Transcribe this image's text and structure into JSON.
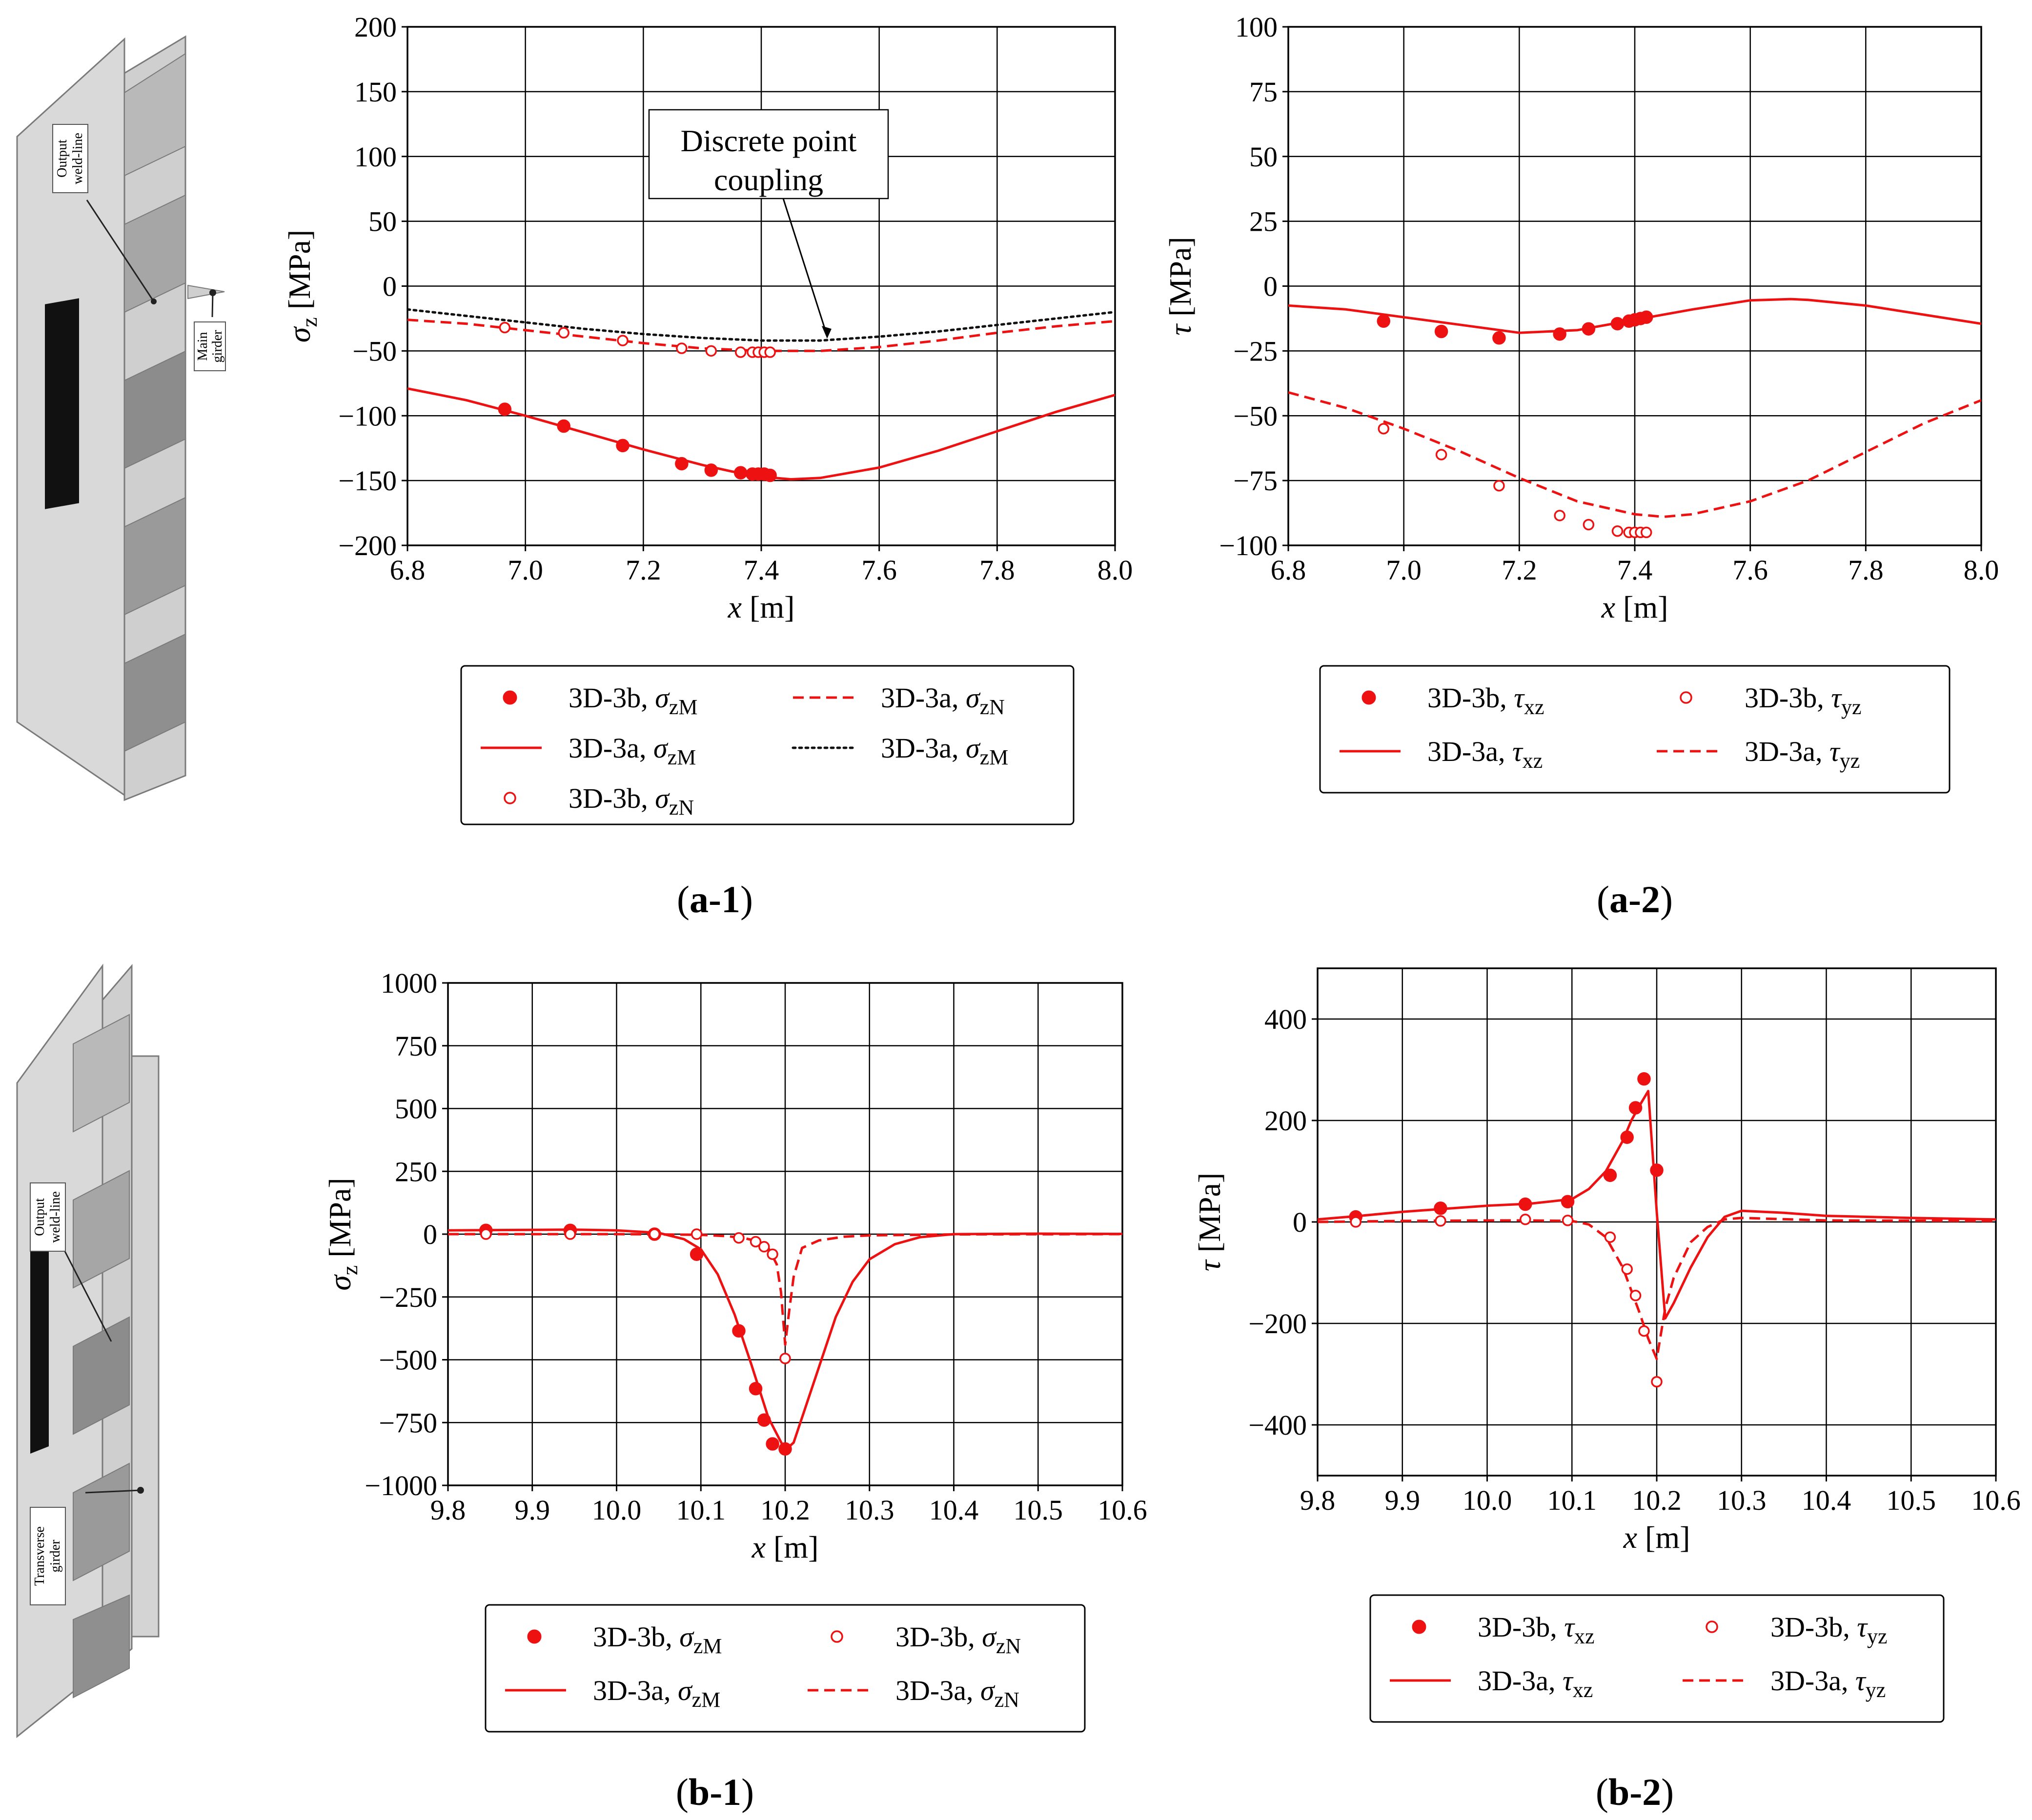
{
  "colors": {
    "series": "#ee1111",
    "dotted": "#111111",
    "grid": "#000000",
    "model_face": "#d9d9d9",
    "model_dark": "#8c8c8c"
  },
  "model_a": {
    "labels": [
      "Output",
      "weld-line",
      "Main",
      "girder"
    ]
  },
  "model_b": {
    "labels": [
      "Output",
      "weld-line",
      "Transverse",
      "girder"
    ]
  },
  "captions": {
    "a1": {
      "open": "(",
      "bold": "a-1",
      "close": ")"
    },
    "a2": {
      "open": "(",
      "bold": "a-2",
      "close": ")"
    },
    "b1": {
      "open": "(",
      "bold": "b-1",
      "close": ")"
    },
    "b2": {
      "open": "(",
      "bold": "b-2",
      "close": ")"
    }
  },
  "chart_data": [
    {
      "id": "a1",
      "type": "line",
      "xlabel": {
        "sym": "x",
        "unit": " [m]"
      },
      "ylabel": {
        "sym": "σ",
        "sub": "z",
        "unit": " [MPa]"
      },
      "xlim": [
        6.8,
        8.0
      ],
      "ylim": [
        -200,
        200
      ],
      "xticks": [
        "6.8",
        "7.0",
        "7.2",
        "7.4",
        "7.6",
        "7.8",
        "8.0"
      ],
      "yticks": [
        "−200",
        "−150",
        "−100",
        "−50",
        "0",
        "50",
        "100",
        "150",
        "200"
      ],
      "grid": true,
      "annotation": {
        "line1": "Discrete point",
        "line2": "coupling",
        "arrow_to": [
          7.51,
          -42
        ]
      },
      "series": [
        {
          "name": "3D-3a, σzM (solid)",
          "style": "solid",
          "x": [
            6.8,
            6.9,
            7.0,
            7.1,
            7.2,
            7.3,
            7.35,
            7.4,
            7.45,
            7.5,
            7.6,
            7.7,
            7.8,
            7.9,
            8.0
          ],
          "y": [
            -79,
            -88,
            -100,
            -113,
            -126,
            -138,
            -143,
            -147,
            -149,
            -148,
            -140,
            -127,
            -112,
            -97,
            -84
          ]
        },
        {
          "name": "3D-3a, σzN (dashed)",
          "style": "dashed",
          "x": [
            6.8,
            6.9,
            7.0,
            7.1,
            7.2,
            7.3,
            7.4,
            7.5,
            7.6,
            7.7,
            7.8,
            7.9,
            8.0
          ],
          "y": [
            -26,
            -29,
            -34,
            -39,
            -44,
            -48,
            -50,
            -50,
            -47,
            -42,
            -36,
            -31,
            -27
          ]
        },
        {
          "name": "3D-3a, σzM (dotted)",
          "style": "dotted",
          "x": [
            6.8,
            6.9,
            7.0,
            7.1,
            7.2,
            7.3,
            7.4,
            7.5,
            7.6,
            7.7,
            7.8,
            7.9,
            8.0
          ],
          "y": [
            -18,
            -23,
            -28,
            -33,
            -37,
            -40,
            -42,
            -42,
            -39,
            -35,
            -30,
            -25,
            -20
          ]
        },
        {
          "name": "3D-3b, σzM",
          "style": "filled",
          "x": [
            6.965,
            7.065,
            7.165,
            7.265,
            7.315,
            7.365,
            7.385,
            7.395,
            7.405,
            7.415
          ],
          "y": [
            -95,
            -108,
            -123,
            -137,
            -142,
            -144,
            -145,
            -145,
            -145,
            -146
          ]
        },
        {
          "name": "3D-3b, σzN",
          "style": "open",
          "x": [
            6.965,
            7.065,
            7.165,
            7.265,
            7.315,
            7.365,
            7.385,
            7.395,
            7.405,
            7.415
          ],
          "y": [
            -32,
            -36,
            -42,
            -48,
            -50,
            -51,
            -51,
            -51,
            -51,
            -51
          ]
        }
      ],
      "legend": [
        {
          "mark": "filled",
          "label": "3D-3b, ",
          "sym": "σ",
          "sub": "zM"
        },
        {
          "mark": "dashed",
          "label": "3D-3a, ",
          "sym": "σ",
          "sub": "zN"
        },
        {
          "mark": "solid",
          "label": "3D-3a, ",
          "sym": "σ",
          "sub": "zM"
        },
        {
          "mark": "dotted",
          "label": "3D-3a, ",
          "sym": "σ",
          "sub": "zM"
        },
        {
          "mark": "open",
          "label": "3D-3b, ",
          "sym": "σ",
          "sub": "zN"
        }
      ]
    },
    {
      "id": "a2",
      "type": "line",
      "xlabel": {
        "sym": "x",
        "unit": " [m]"
      },
      "ylabel": {
        "sym": "τ",
        "sub": "",
        "unit": " [MPa]"
      },
      "xlim": [
        6.8,
        8.0
      ],
      "ylim": [
        -100,
        100
      ],
      "xticks": [
        "6.8",
        "7.0",
        "7.2",
        "7.4",
        "7.6",
        "7.8",
        "8.0"
      ],
      "yticks": [
        "−100",
        "−75",
        "−50",
        "−25",
        "0",
        "25",
        "50",
        "75",
        "100"
      ],
      "grid": true,
      "series": [
        {
          "name": "3D-3a, τxz",
          "style": "solid",
          "x": [
            6.8,
            6.9,
            7.0,
            7.1,
            7.2,
            7.3,
            7.4,
            7.5,
            7.6,
            7.67,
            7.7,
            7.8,
            7.9,
            8.0
          ],
          "y": [
            -7.5,
            -9,
            -12,
            -15,
            -18,
            -17,
            -13,
            -9,
            -5.5,
            -5,
            -5.3,
            -7.5,
            -11,
            -14.5
          ]
        },
        {
          "name": "3D-3a, τyz",
          "style": "dashed",
          "x": [
            6.8,
            6.9,
            7.0,
            7.1,
            7.2,
            7.3,
            7.4,
            7.45,
            7.5,
            7.6,
            7.7,
            7.8,
            7.9,
            8.0
          ],
          "y": [
            -41,
            -47,
            -55,
            -64,
            -74,
            -83,
            -88,
            -89,
            -88,
            -83,
            -75,
            -64,
            -53,
            -44
          ]
        },
        {
          "name": "3D-3b, τxz",
          "style": "filled",
          "x": [
            6.965,
            7.065,
            7.165,
            7.27,
            7.32,
            7.37,
            7.39,
            7.4,
            7.41,
            7.42
          ],
          "y": [
            -13.5,
            -17.5,
            -20,
            -18.5,
            -16.5,
            -14.5,
            -13.5,
            -13,
            -12.5,
            -12
          ]
        },
        {
          "name": "3D-3b, τyz",
          "style": "open",
          "x": [
            6.965,
            7.065,
            7.165,
            7.27,
            7.32,
            7.37,
            7.39,
            7.4,
            7.41,
            7.42
          ],
          "y": [
            -55,
            -65,
            -77,
            -88.5,
            -92,
            -94.5,
            -95,
            -95,
            -95,
            -95
          ]
        }
      ],
      "legend": [
        {
          "mark": "filled",
          "label": "3D-3b, ",
          "sym": "τ",
          "sub": "xz"
        },
        {
          "mark": "open",
          "label": "3D-3b, ",
          "sym": "τ",
          "sub": "yz"
        },
        {
          "mark": "solid",
          "label": "3D-3a, ",
          "sym": "τ",
          "sub": "xz"
        },
        {
          "mark": "dashed",
          "label": "3D-3a, ",
          "sym": "τ",
          "sub": "yz"
        }
      ]
    },
    {
      "id": "b1",
      "type": "line",
      "xlabel": {
        "sym": "x",
        "unit": " [m]"
      },
      "ylabel": {
        "sym": "σ",
        "sub": "z",
        "unit": " [MPa]"
      },
      "xlim": [
        9.8,
        10.6
      ],
      "ylim": [
        -1000,
        1000
      ],
      "xticks": [
        "9.8",
        "9.9",
        "10.0",
        "10.1",
        "10.2",
        "10.3",
        "10.4",
        "10.5",
        "10.6"
      ],
      "yticks": [
        "−1000",
        "−750",
        "−500",
        "−250",
        "0",
        "250",
        "500",
        "750",
        "1000"
      ],
      "grid": true,
      "series": [
        {
          "name": "3D-3a, σzM",
          "style": "solid",
          "x": [
            9.8,
            9.9,
            9.95,
            10.0,
            10.05,
            10.08,
            10.1,
            10.12,
            10.14,
            10.16,
            10.18,
            10.2,
            10.21,
            10.22,
            10.24,
            10.26,
            10.28,
            10.3,
            10.33,
            10.36,
            10.4,
            10.5,
            10.6
          ],
          "y": [
            15,
            17,
            18,
            15,
            5,
            -20,
            -60,
            -160,
            -320,
            -520,
            -730,
            -860,
            -830,
            -730,
            -530,
            -330,
            -190,
            -100,
            -40,
            -12,
            0,
            2,
            1
          ]
        },
        {
          "name": "3D-3a, σzN",
          "style": "dashed",
          "x": [
            9.8,
            9.9,
            10.0,
            10.05,
            10.1,
            10.13,
            10.15,
            10.17,
            10.18,
            10.19,
            10.195,
            10.2,
            10.205,
            10.21,
            10.22,
            10.24,
            10.27,
            10.3,
            10.4,
            10.6
          ],
          "y": [
            0,
            0,
            0,
            -1,
            -3,
            -8,
            -15,
            -30,
            -55,
            -120,
            -230,
            -440,
            -300,
            -170,
            -55,
            -25,
            -10,
            -5,
            -1,
            0
          ]
        },
        {
          "name": "3D-3b, σzM",
          "style": "filled",
          "x": [
            9.845,
            9.945,
            10.045,
            10.095,
            10.145,
            10.165,
            10.175,
            10.185,
            10.2
          ],
          "y": [
            15,
            15,
            0,
            -80,
            -385,
            -615,
            -740,
            -835,
            -855
          ]
        },
        {
          "name": "3D-3b, σzN",
          "style": "open",
          "x": [
            9.845,
            9.945,
            10.045,
            10.095,
            10.145,
            10.165,
            10.175,
            10.185,
            10.2
          ],
          "y": [
            0,
            0,
            0,
            0,
            -15,
            -30,
            -50,
            -80,
            -495
          ]
        }
      ],
      "legend": [
        {
          "mark": "filled",
          "label": "3D-3b, ",
          "sym": "σ",
          "sub": "zM"
        },
        {
          "mark": "open",
          "label": "3D-3b, ",
          "sym": "σ",
          "sub": "zN"
        },
        {
          "mark": "solid",
          "label": "3D-3a, ",
          "sym": "σ",
          "sub": "zM"
        },
        {
          "mark": "dashed",
          "label": "3D-3a, ",
          "sym": "σ",
          "sub": "zN"
        }
      ]
    },
    {
      "id": "b2",
      "type": "line",
      "xlabel": {
        "sym": "x",
        "unit": " [m]"
      },
      "ylabel": {
        "sym": "τ",
        "sub": "",
        "unit": " [MPa]"
      },
      "xlim": [
        9.8,
        10.6
      ],
      "ylim": [
        -500,
        500
      ],
      "xticks": [
        "9.8",
        "9.9",
        "10.0",
        "10.1",
        "10.2",
        "10.3",
        "10.4",
        "10.5",
        "10.6"
      ],
      "yticks": [
        "−400",
        "−200",
        "0",
        "200",
        "400"
      ],
      "ytickvals": [
        -400,
        -200,
        0,
        200,
        400
      ],
      "grid": true,
      "series": [
        {
          "name": "3D-3a, τxz",
          "style": "solid",
          "x": [
            9.8,
            9.85,
            9.9,
            9.95,
            10.0,
            10.05,
            10.1,
            10.12,
            10.14,
            10.16,
            10.17,
            10.18,
            10.19,
            10.2,
            10.21,
            10.22,
            10.24,
            10.26,
            10.28,
            10.3,
            10.35,
            10.4,
            10.5,
            10.6
          ],
          "y": [
            5,
            12,
            20,
            26,
            32,
            36,
            45,
            65,
            100,
            160,
            200,
            230,
            258,
            20,
            -190,
            -160,
            -90,
            -30,
            10,
            22,
            18,
            12,
            8,
            5
          ]
        },
        {
          "name": "3D-3a, τyz",
          "style": "dashed",
          "x": [
            9.8,
            9.9,
            10.0,
            10.05,
            10.1,
            10.12,
            10.14,
            10.16,
            10.18,
            10.19,
            10.2,
            10.21,
            10.22,
            10.24,
            10.26,
            10.28,
            10.3,
            10.4,
            10.6
          ],
          "y": [
            0,
            2,
            3,
            3,
            2,
            -5,
            -30,
            -90,
            -180,
            -230,
            -270,
            -170,
            -110,
            -40,
            -10,
            5,
            8,
            3,
            2
          ]
        },
        {
          "name": "3D-3b, τxz",
          "style": "filled",
          "x": [
            9.845,
            9.945,
            10.045,
            10.095,
            10.145,
            10.165,
            10.175,
            10.185,
            10.2
          ],
          "y": [
            10,
            27,
            35,
            40,
            92,
            167,
            225,
            282,
            102
          ]
        },
        {
          "name": "3D-3b, τyz",
          "style": "open",
          "x": [
            9.845,
            9.945,
            10.045,
            10.095,
            10.145,
            10.165,
            10.175,
            10.185,
            10.2
          ],
          "y": [
            0,
            2,
            5,
            3,
            -30,
            -93,
            -145,
            -215,
            -315
          ]
        }
      ],
      "legend": [
        {
          "mark": "filled",
          "label": "3D-3b, ",
          "sym": "τ",
          "sub": "xz"
        },
        {
          "mark": "open",
          "label": "3D-3b, ",
          "sym": "τ",
          "sub": "yz"
        },
        {
          "mark": "solid",
          "label": "3D-3a, ",
          "sym": "τ",
          "sub": "xz"
        },
        {
          "mark": "dashed",
          "label": "3D-3a, ",
          "sym": "τ",
          "sub": "yz"
        }
      ]
    }
  ]
}
